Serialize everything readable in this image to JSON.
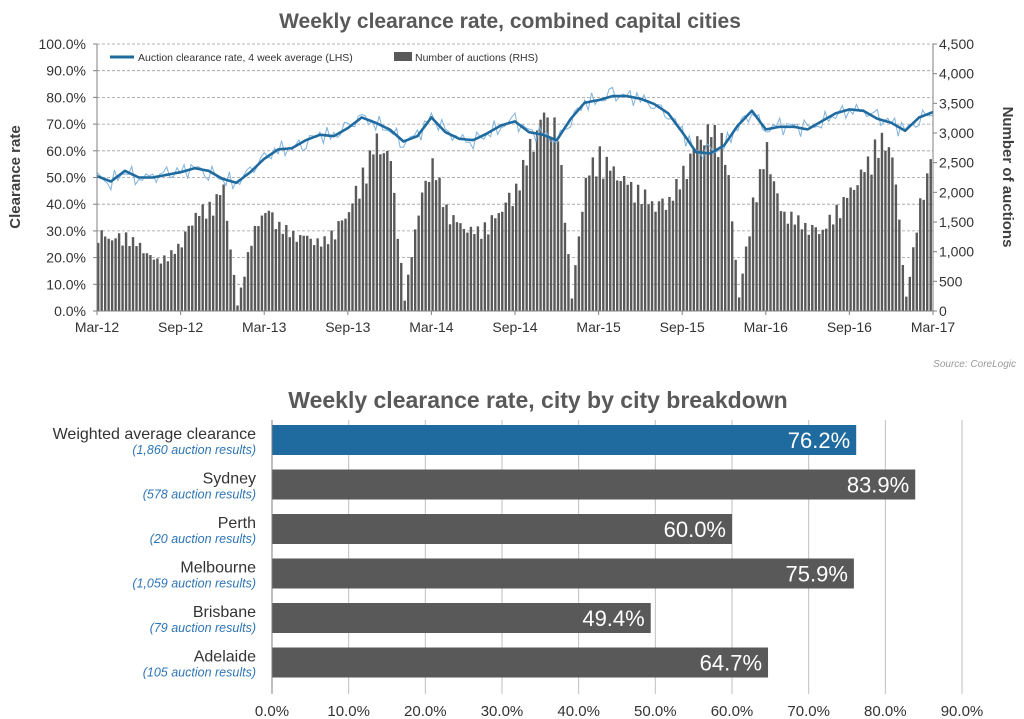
{
  "chart_data": [
    {
      "type": "line",
      "title": "Weekly clearance rate, combined capital cities",
      "ylabel": "Clearance rate",
      "y2label": "Number of auctions",
      "ylim": [
        0,
        100
      ],
      "y2lim": [
        0,
        4500
      ],
      "xlim": [
        "2012-03",
        "2017-03"
      ],
      "x_ticks": [
        "Mar-12",
        "Sep-12",
        "Mar-13",
        "Sep-13",
        "Mar-14",
        "Sep-14",
        "Mar-15",
        "Sep-15",
        "Mar-16",
        "Sep-16",
        "Mar-17"
      ],
      "y_ticks": [
        "0.0%",
        "10.0%",
        "20.0%",
        "30.0%",
        "40.0%",
        "50.0%",
        "60.0%",
        "70.0%",
        "80.0%",
        "90.0%",
        "100.0%"
      ],
      "y2_ticks": [
        "0",
        "500",
        "1,000",
        "1,500",
        "2,000",
        "2,500",
        "3,000",
        "3,500",
        "4,000",
        "4,500"
      ],
      "legend_position": "top-left",
      "grid": "horizontal dashed",
      "source": "Source: CoreLogic",
      "series": [
        {
          "name": "Auction clearance rate, 4 week average (LHS)",
          "color": "#1f6a9e",
          "x": [
            "2012-03",
            "2012-04",
            "2012-05",
            "2012-06",
            "2012-07",
            "2012-08",
            "2012-09",
            "2012-10",
            "2012-11",
            "2012-12",
            "2013-01",
            "2013-02",
            "2013-03",
            "2013-04",
            "2013-05",
            "2013-06",
            "2013-07",
            "2013-08",
            "2013-09",
            "2013-10",
            "2013-11",
            "2013-12",
            "2014-01",
            "2014-02",
            "2014-03",
            "2014-04",
            "2014-05",
            "2014-06",
            "2014-07",
            "2014-08",
            "2014-09",
            "2014-10",
            "2014-11",
            "2014-12",
            "2015-01",
            "2015-02",
            "2015-03",
            "2015-04",
            "2015-05",
            "2015-06",
            "2015-07",
            "2015-08",
            "2015-09",
            "2015-10",
            "2015-11",
            "2015-12",
            "2016-01",
            "2016-02",
            "2016-03",
            "2016-04",
            "2016-05",
            "2016-06",
            "2016-07",
            "2016-08",
            "2016-09",
            "2016-10",
            "2016-11",
            "2016-12",
            "2017-01",
            "2017-02",
            "2017-03"
          ],
          "values": [
            50.5,
            48.5,
            52.5,
            50.0,
            50.0,
            51.0,
            52.0,
            53.5,
            52.5,
            49.5,
            48.0,
            52.0,
            57.0,
            60.5,
            61.0,
            64.0,
            66.0,
            65.5,
            68.5,
            72.5,
            70.5,
            68.0,
            63.5,
            65.5,
            72.5,
            67.0,
            64.5,
            64.0,
            66.5,
            69.5,
            71.0,
            67.0,
            66.0,
            64.0,
            72.0,
            78.0,
            79.0,
            80.5,
            80.5,
            79.5,
            77.5,
            74.0,
            67.0,
            59.5,
            59.0,
            62.0,
            69.5,
            75.0,
            68.0,
            69.0,
            69.0,
            68.0,
            71.0,
            74.0,
            75.5,
            75.0,
            72.0,
            70.5,
            67.5,
            72.5,
            74.5
          ]
        },
        {
          "name": "Number of auctions (RHS)",
          "color": "#595959",
          "x": [
            "2012-03",
            "2012-04",
            "2012-05",
            "2012-06",
            "2012-07",
            "2012-08",
            "2012-09",
            "2012-10",
            "2012-11",
            "2012-12",
            "2013-01",
            "2013-02",
            "2013-03",
            "2013-04",
            "2013-05",
            "2013-06",
            "2013-07",
            "2013-08",
            "2013-09",
            "2013-10",
            "2013-11",
            "2013-12",
            "2014-01",
            "2014-02",
            "2014-03",
            "2014-04",
            "2014-05",
            "2014-06",
            "2014-07",
            "2014-08",
            "2014-09",
            "2014-10",
            "2014-11",
            "2014-12",
            "2015-01",
            "2015-02",
            "2015-03",
            "2015-04",
            "2015-05",
            "2015-06",
            "2015-07",
            "2015-08",
            "2015-09",
            "2015-10",
            "2015-11",
            "2015-12",
            "2016-01",
            "2016-02",
            "2016-03",
            "2016-04",
            "2016-05",
            "2016-06",
            "2016-07",
            "2016-08",
            "2016-09",
            "2016-10",
            "2016-11",
            "2016-12",
            "2017-01",
            "2017-02",
            "2017-03"
          ],
          "values": [
            1400,
            1300,
            1350,
            1150,
            900,
            950,
            1250,
            1750,
            1850,
            2150,
            100,
            1300,
            1850,
            1550,
            1350,
            1300,
            1200,
            1450,
            1800,
            2450,
            3000,
            2650,
            200,
            1850,
            2700,
            1800,
            1500,
            1400,
            1550,
            1850,
            2200,
            2900,
            3450,
            3200,
            250,
            2400,
            2800,
            2450,
            2250,
            2100,
            1900,
            2000,
            2450,
            3000,
            3200,
            3000,
            250,
            1950,
            2850,
            1750,
            1650,
            1500,
            1450,
            1800,
            2100,
            2500,
            3050,
            2900,
            250,
            1900,
            2900
          ]
        }
      ]
    },
    {
      "type": "bar",
      "orientation": "horizontal",
      "title": "Weekly clearance rate, city by city breakdown",
      "xlim": [
        0,
        90
      ],
      "x_ticks": [
        "0.0%",
        "10.0%",
        "20.0%",
        "30.0%",
        "40.0%",
        "50.0%",
        "60.0%",
        "70.0%",
        "80.0%",
        "90.0%"
      ],
      "categories": [
        "Weighted average clearance",
        "Sydney",
        "Perth",
        "Melbourne",
        "Brisbane",
        "Adelaide"
      ],
      "subtitles": [
        "(1,860 auction results)",
        "(578 auction results)",
        "(20 auction results)",
        "(1,059 auction results)",
        "(79 auction results)",
        "(105 auction results)"
      ],
      "values": [
        76.2,
        83.9,
        60.0,
        75.9,
        49.4,
        64.7
      ],
      "value_labels": [
        "76.2%",
        "83.9%",
        "60.0%",
        "75.9%",
        "49.4%",
        "64.7%"
      ],
      "colors": [
        "#1f6a9e",
        "#595959",
        "#595959",
        "#595959",
        "#595959",
        "#595959"
      ],
      "grid": "vertical"
    }
  ]
}
